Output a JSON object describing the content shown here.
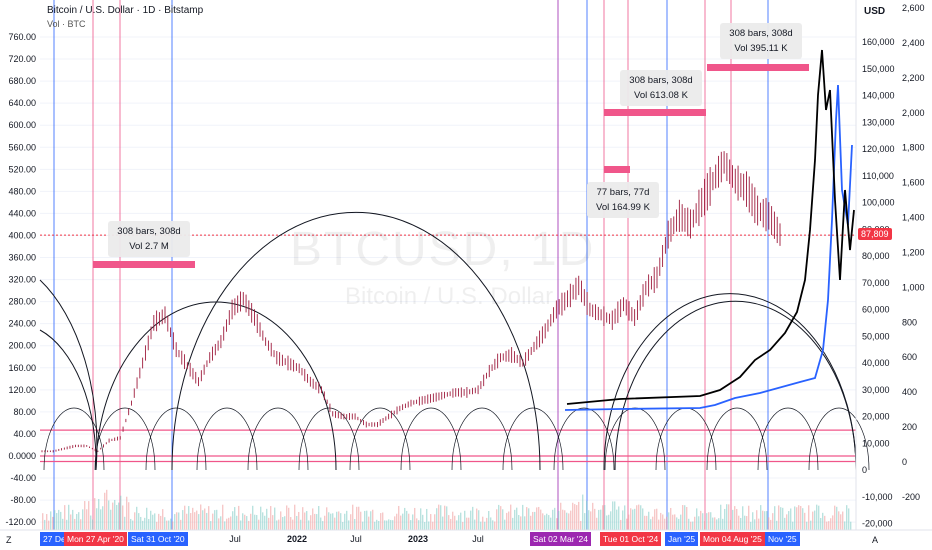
{
  "header": {
    "title": "Bitcoin / U.S. Dollar · 1D · Bitstamp",
    "volume_label": "Vol · BTC",
    "currency": "USD",
    "watermark_symbol": "BTCUSD, 1D",
    "watermark_name": "Bitcoin / U.S. Dollar",
    "last_price": "87,809"
  },
  "annotations": [
    {
      "line1": "308 bars, 308d",
      "line2": "Vol 2.7 M"
    },
    {
      "line1": "77 bars, 77d",
      "line2": "Vol 164.99 K"
    },
    {
      "line1": "308 bars, 308d",
      "line2": "Vol 613.08 K"
    },
    {
      "line1": "308 bars, 308d",
      "line2": "Vol 395.11 K"
    }
  ],
  "date_tags": [
    {
      "label": "27 De",
      "color": "#2962ff"
    },
    {
      "label": "Mon 27 Apr '20",
      "color": "#f23645"
    },
    {
      "label": "Sat 31 Oct '20",
      "color": "#2962ff"
    },
    {
      "label": "Sat 02 Mar '24",
      "color": "#9c27b0"
    },
    {
      "label": "Tue 01 Oct '24",
      "color": "#f23645"
    },
    {
      "label": "Jan '25",
      "color": "#2962ff"
    },
    {
      "label": "Mon 04 Aug '25",
      "color": "#f23645"
    },
    {
      "label": "Nov '25",
      "color": "#2962ff"
    }
  ],
  "corner_labels": {
    "left": "Z",
    "right": "A"
  },
  "colors": {
    "candle_up": "#9e1b3c",
    "blue_line": "#2962ff",
    "black_line": "#000000",
    "marker_pink": "#f0568a",
    "red": "#f23645"
  },
  "chart_data": {
    "type": "line",
    "left_axis_ticks": [
      -120,
      -80,
      -40,
      0,
      40,
      80,
      120,
      160,
      200,
      240,
      280,
      320,
      360,
      400,
      440,
      480,
      520,
      560,
      600,
      640,
      680,
      720,
      760
    ],
    "left_axis_labels": [
      "-120.00",
      "-80.00",
      "-40.00",
      "0.0000",
      "40.00",
      "80.00",
      "120.00",
      "160.00",
      "200.00",
      "240.00",
      "280.00",
      "320.00",
      "360.00",
      "400.00",
      "440.00",
      "480.00",
      "520.00",
      "560.00",
      "600.00",
      "640.00",
      "680.00",
      "720.00",
      "760.00"
    ],
    "right_axis_price": [
      "-20,000",
      "-10,000",
      "0",
      "10,000",
      "20,000",
      "30,000",
      "40,000",
      "50,000",
      "60,000",
      "70,000",
      "80,000",
      "90,000",
      "100,000",
      "110,000",
      "120,000",
      "130,000",
      "140,000",
      "150,000",
      "160,000"
    ],
    "right_axis_far": [
      "-200",
      "0",
      "200",
      "400",
      "600",
      "800",
      "1,000",
      "1,200",
      "1,400",
      "1,600",
      "1,800",
      "2,000",
      "2,200",
      "2,400",
      "2,600"
    ],
    "x_axis_labels": [
      "Jul",
      "2022",
      "Jul",
      "2023",
      "Jul",
      "A"
    ],
    "series": [
      {
        "values": [
          7,
          8,
          9,
          9,
          7,
          11,
          12,
          25,
          40,
          55,
          58,
          45,
          39,
          33,
          42,
          48,
          60,
          64,
          57,
          48,
          42,
          40,
          38,
          33,
          30,
          21,
          20,
          20,
          17,
          17,
          20,
          23,
          25,
          26,
          27,
          28,
          29,
          29,
          30,
          37,
          42,
          43,
          40,
          46,
          52,
          60,
          64,
          69,
          60,
          58,
          56,
          62,
          57,
          68,
          72,
          88,
          95,
          92,
          100,
          108,
          115,
          108,
          105,
          97,
          95,
          88,
          84
        ]
      }
    ]
  }
}
